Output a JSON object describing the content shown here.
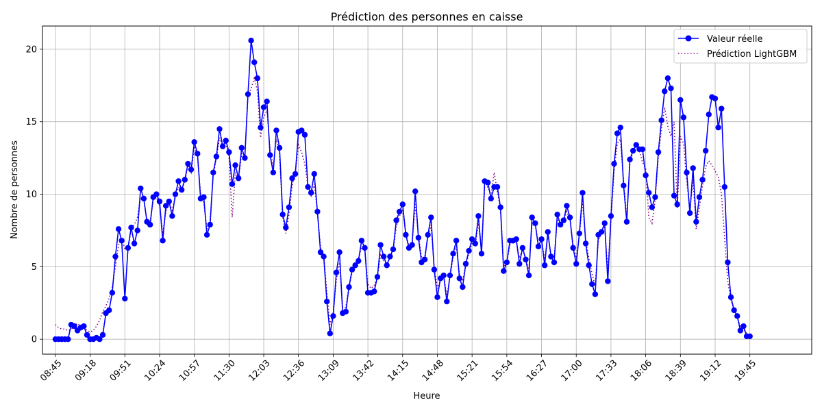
{
  "chart_data": {
    "type": "line",
    "title": "Prédiction des personnes en caisse",
    "xlabel": "Heure",
    "ylabel": "Nombre de personnes",
    "x_tick_labels": [
      "08:45",
      "09:18",
      "09:51",
      "10:24",
      "10:57",
      "11:30",
      "12:03",
      "12:36",
      "13:09",
      "13:42",
      "14:15",
      "14:48",
      "15:21",
      "15:54",
      "16:27",
      "17:00",
      "17:33",
      "18:06",
      "18:39",
      "19:12",
      "19:45"
    ],
    "x_tick_minutes": [
      525,
      558,
      591,
      624,
      657,
      690,
      723,
      756,
      789,
      822,
      855,
      888,
      921,
      954,
      987,
      1020,
      1053,
      1086,
      1119,
      1152,
      1185
    ],
    "x_start_minutes": 525,
    "x_step_minutes": 3,
    "yticks": [
      0,
      5,
      10,
      15,
      20
    ],
    "ylim": [
      -1.03,
      21.6
    ],
    "xlim": [
      -4.1,
      239.6
    ],
    "grid": true,
    "legend_position": "top-right",
    "series": [
      {
        "name": "Valeur réelle",
        "color": "#0000ff",
        "style": "solid-marker",
        "values": [
          0,
          0,
          0,
          0,
          0,
          1.0,
          0.9,
          0.6,
          0.8,
          0.9,
          0.3,
          0,
          0,
          0.1,
          0,
          0.3,
          1.8,
          2.0,
          3.2,
          5.7,
          7.6,
          6.8,
          2.8,
          6.3,
          7.7,
          6.6,
          7.5,
          10.4,
          9.7,
          8.1,
          7.9,
          9.8,
          10.0,
          9.5,
          6.8,
          9.2,
          9.5,
          8.5,
          10.0,
          10.9,
          10.3,
          11.0,
          12.1,
          11.7,
          13.6,
          12.8,
          9.7,
          9.8,
          7.2,
          7.9,
          11.5,
          12.6,
          14.5,
          13.3,
          13.7,
          12.9,
          10.7,
          12.0,
          11.1,
          13.2,
          12.5,
          16.9,
          20.6,
          19.1,
          18.0,
          14.6,
          16.0,
          16.4,
          12.7,
          11.5,
          14.4,
          13.2,
          8.6,
          7.7,
          9.1,
          11.1,
          11.4,
          14.3,
          14.4,
          14.1,
          10.5,
          10.1,
          11.4,
          8.8,
          6.0,
          5.7,
          2.6,
          0.4,
          1.6,
          4.6,
          6.0,
          1.8,
          1.9,
          3.6,
          4.8,
          5.1,
          5.4,
          6.8,
          6.3,
          3.2,
          3.2,
          3.3,
          4.3,
          6.5,
          5.7,
          5.1,
          5.7,
          6.2,
          8.2,
          8.8,
          9.3,
          7.2,
          6.3,
          6.5,
          10.2,
          7.0,
          5.3,
          5.5,
          7.2,
          8.4,
          4.8,
          2.9,
          4.2,
          4.4,
          2.6,
          4.4,
          5.9,
          6.8,
          4.2,
          3.6,
          5.2,
          6.1,
          6.9,
          6.6,
          8.5,
          5.9,
          10.9,
          10.8,
          9.7,
          10.5,
          10.5,
          9.1,
          4.7,
          5.3,
          6.8,
          6.8,
          6.9,
          5.2,
          6.3,
          5.5,
          4.4,
          8.4,
          8.0,
          6.4,
          6.9,
          5.1,
          7.4,
          5.7,
          5.3,
          8.6,
          7.9,
          8.2,
          9.2,
          8.4,
          6.3,
          5.2,
          7.3,
          10.1,
          6.6,
          5.1,
          3.8,
          3.1,
          7.2,
          7.4,
          8.0,
          4.0,
          8.5,
          12.1,
          14.2,
          14.6,
          10.6,
          8.1,
          12.4,
          13.0,
          13.4,
          13.1,
          13.1,
          11.3,
          10.1,
          9.1,
          9.8,
          12.9,
          15.1,
          17.1,
          18.0,
          17.3,
          9.9,
          9.3,
          16.5,
          15.3,
          11.5,
          8.7,
          11.8,
          8.1,
          9.8,
          11.0,
          13.0,
          15.5,
          16.7,
          16.6,
          14.6,
          15.9,
          10.5,
          5.3,
          2.9,
          2.0,
          1.6,
          0.6,
          0.9,
          0.2,
          0.2
        ]
      },
      {
        "name": "Prédiction LightGBM",
        "color": "#800080",
        "style": "dotted",
        "values": [
          1.0,
          0.8,
          0.7,
          0.7,
          0.6,
          0.7,
          0.9,
          1.1,
          0.9,
          0.8,
          0.6,
          0.5,
          0.6,
          0.9,
          1.3,
          1.9,
          2.3,
          2.8,
          3.6,
          5.0,
          6.5,
          7.0,
          6.2,
          6.3,
          7.6,
          7.9,
          8.4,
          9.8,
          9.6,
          8.2,
          8.1,
          9.6,
          9.8,
          9.2,
          7.3,
          8.8,
          9.4,
          8.9,
          9.8,
          10.5,
          10.3,
          10.9,
          12.0,
          11.5,
          13.3,
          12.7,
          10.0,
          9.4,
          7.6,
          8.2,
          11.3,
          12.5,
          13.9,
          13.2,
          13.5,
          12.6,
          8.4,
          11.5,
          11.0,
          12.8,
          12.6,
          16.8,
          17.3,
          18.0,
          17.1,
          13.9,
          15.3,
          15.8,
          13.1,
          11.9,
          13.8,
          12.8,
          8.4,
          7.3,
          8.6,
          10.6,
          11.5,
          13.4,
          12.9,
          12.1,
          10.6,
          9.9,
          10.7,
          8.8,
          6.3,
          5.8,
          3.2,
          1.0,
          1.8,
          4.1,
          5.3,
          2.2,
          2.2,
          3.6,
          4.6,
          5.0,
          5.6,
          6.3,
          6.2,
          3.8,
          3.5,
          3.7,
          4.3,
          5.8,
          5.4,
          5.2,
          5.6,
          6.1,
          7.8,
          8.5,
          8.9,
          7.3,
          6.4,
          6.6,
          9.3,
          7.2,
          5.6,
          5.7,
          7.0,
          7.9,
          5.0,
          3.5,
          4.1,
          4.3,
          3.0,
          4.3,
          5.6,
          6.4,
          4.5,
          4.0,
          5.1,
          5.9,
          6.6,
          6.5,
          8.0,
          6.2,
          10.5,
          10.5,
          9.9,
          11.5,
          10.2,
          9.0,
          5.0,
          5.3,
          6.5,
          6.7,
          6.7,
          5.6,
          6.2,
          5.6,
          4.8,
          8.0,
          7.9,
          6.6,
          6.8,
          5.5,
          7.1,
          5.9,
          5.6,
          8.3,
          7.8,
          8.1,
          8.8,
          8.3,
          6.5,
          5.6,
          7.2,
          9.5,
          6.8,
          5.6,
          4.5,
          3.7,
          6.8,
          7.4,
          7.8,
          4.7,
          8.2,
          11.6,
          13.5,
          13.8,
          10.9,
          8.4,
          12.1,
          13.0,
          13.6,
          13.0,
          12.2,
          11.8,
          8.4,
          8.0,
          9.6,
          12.6,
          14.5,
          16.0,
          14.7,
          14.0,
          15.0,
          9.0,
          14.0,
          13.5,
          10.9,
          8.9,
          11.0,
          7.6,
          9.1,
          10.6,
          11.9,
          12.3,
          12.0,
          11.6,
          11.2,
          10.0,
          7.0,
          4.0,
          2.7,
          2.1,
          1.5,
          0.9,
          0.7,
          0.4,
          0.3
        ]
      }
    ]
  }
}
